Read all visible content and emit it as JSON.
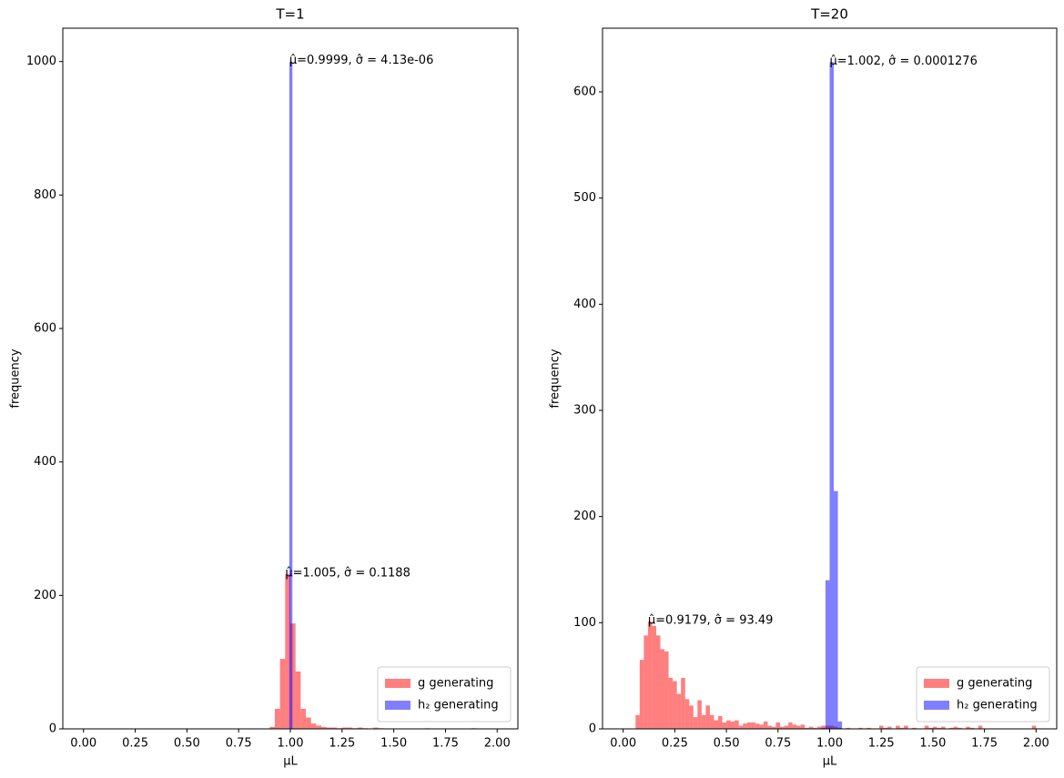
{
  "chart_data": [
    {
      "type": "histogram",
      "title": "T=1",
      "xlabel": "μL",
      "ylabel": "frequency",
      "xlim": [
        -0.1,
        2.1
      ],
      "ylim": [
        0,
        1050
      ],
      "xticks": [
        {
          "value": 0,
          "label": "0.00"
        },
        0.25,
        {
          "value": 0.5,
          "label": "0.50"
        },
        0.75,
        {
          "value": 1,
          "label": "1.00"
        },
        1.25,
        {
          "value": 1.5,
          "label": "1.50"
        },
        1.75,
        {
          "value": 2,
          "label": "2.00"
        }
      ],
      "yticks": [
        0,
        200,
        400,
        600,
        800,
        1000
      ],
      "legend": "lower right",
      "alpha": 0.5,
      "series": [
        {
          "name": "g generating",
          "color": "red",
          "annotation": "μ̂=1.005, σ̂ = 0.1188",
          "bins": [
            0.9,
            0.925,
            0.95,
            0.975,
            1.0,
            1.025,
            1.05,
            1.075,
            1.1,
            1.125,
            1.15,
            1.175,
            1.2,
            1.225,
            1.25,
            1.275,
            1.3,
            1.325,
            1.35,
            1.375,
            1.4,
            1.425,
            1.45,
            1.475,
            1.5,
            1.525,
            1.55,
            1.575,
            1.6,
            1.625,
            1.65,
            1.675,
            1.7,
            1.725,
            1.75,
            1.775,
            1.8,
            1.825,
            1.85,
            1.875,
            1.9
          ],
          "values": [
            3,
            30,
            105,
            232,
            158,
            86,
            30,
            17,
            8,
            5,
            3,
            2,
            2,
            1,
            2,
            2,
            1,
            2,
            1,
            0,
            2,
            1,
            0,
            0,
            0,
            0,
            0,
            0,
            0,
            0,
            1,
            0,
            0,
            0,
            0,
            0,
            0,
            0,
            0,
            1
          ]
        },
        {
          "name": "h₂ generating",
          "color": "blue",
          "annotation": "μ̂=0.9999, σ̂ = 4.13e-06",
          "bins": [
            0.995,
            1.01
          ],
          "values": [
            1000
          ]
        }
      ]
    },
    {
      "type": "histogram",
      "title": "T=20",
      "xlabel": "μL",
      "ylabel": "frequency",
      "xlim": [
        -0.1,
        2.1
      ],
      "ylim": [
        0,
        660
      ],
      "xticks": [
        {
          "value": 0,
          "label": "0.00"
        },
        0.25,
        {
          "value": 0.5,
          "label": "0.50"
        },
        0.75,
        {
          "value": 1,
          "label": "1.00"
        },
        1.25,
        {
          "value": 1.5,
          "label": "1.50"
        },
        1.75,
        {
          "value": 2,
          "label": "2.00"
        }
      ],
      "yticks": [
        0,
        100,
        200,
        300,
        400,
        500,
        600
      ],
      "legend": "lower right",
      "alpha": 0.5,
      "series": [
        {
          "name": "g generating",
          "color": "red",
          "annotation": "μ̂=0.9179, σ̂ = 93.49",
          "bins": [
            0.06,
            0.08,
            0.1,
            0.12,
            0.14,
            0.16,
            0.18,
            0.2,
            0.22,
            0.24,
            0.26,
            0.28,
            0.3,
            0.32,
            0.34,
            0.36,
            0.38,
            0.4,
            0.42,
            0.44,
            0.46,
            0.48,
            0.5,
            0.52,
            0.54,
            0.56,
            0.58,
            0.6,
            0.62,
            0.64,
            0.66,
            0.68,
            0.7,
            0.72,
            0.74,
            0.76,
            0.78,
            0.8,
            0.82,
            0.84,
            0.86,
            0.88,
            0.9,
            0.92,
            0.94,
            0.96,
            0.98,
            1.0,
            1.02,
            1.04,
            1.06,
            1.08,
            1.1,
            1.12,
            1.14,
            1.16,
            1.18,
            1.2,
            1.22,
            1.24,
            1.26,
            1.28,
            1.3,
            1.32,
            1.34,
            1.36,
            1.38,
            1.4,
            1.42,
            1.44,
            1.46,
            1.48,
            1.5,
            1.52,
            1.54,
            1.56,
            1.58,
            1.6,
            1.62,
            1.64,
            1.66,
            1.68,
            1.7,
            1.72,
            1.74,
            1.76,
            1.78,
            1.8,
            1.82,
            1.84,
            1.86,
            1.88,
            1.9,
            1.92,
            1.94,
            1.96,
            1.98,
            2.0
          ],
          "values": [
            13,
            65,
            88,
            101,
            97,
            88,
            75,
            73,
            48,
            45,
            33,
            48,
            28,
            22,
            11,
            27,
            13,
            22,
            13,
            8,
            12,
            6,
            8,
            7,
            8,
            3,
            5,
            6,
            6,
            5,
            4,
            7,
            3,
            2,
            6,
            2,
            3,
            6,
            4,
            3,
            4,
            1,
            2,
            1,
            2,
            3,
            3,
            3,
            2,
            1,
            0,
            1,
            0,
            0,
            1,
            0,
            1,
            0,
            0,
            3,
            1,
            2,
            0,
            3,
            1,
            3,
            0,
            1,
            0,
            0,
            3,
            1,
            2,
            1,
            2,
            0,
            1,
            2,
            1,
            0,
            2,
            1,
            0,
            3,
            0,
            0,
            0,
            0,
            0,
            0,
            0,
            0,
            0,
            0,
            0,
            0,
            3
          ]
        },
        {
          "name": "h₂ generating",
          "color": "blue",
          "annotation": "μ̂=1.002, σ̂ = 0.0001276",
          "bins": [
            0.96,
            0.98,
            1.0,
            1.02,
            1.04,
            1.06
          ],
          "values": [
            1,
            140,
            628,
            224,
            7
          ]
        }
      ]
    }
  ]
}
